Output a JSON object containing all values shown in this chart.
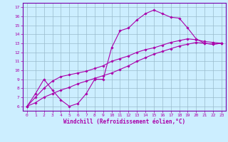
{
  "xlabel": "Windchill (Refroidissement éolien,°C)",
  "bg_color": "#cceeff",
  "line_color": "#aa00aa",
  "grid_color": "#99bbcc",
  "spine_color": "#7700aa",
  "xlim": [
    -0.5,
    23.5
  ],
  "ylim": [
    5.5,
    17.5
  ],
  "xticks": [
    0,
    1,
    2,
    3,
    4,
    5,
    6,
    7,
    8,
    9,
    10,
    11,
    12,
    13,
    14,
    15,
    16,
    17,
    18,
    19,
    20,
    21,
    22,
    23
  ],
  "yticks": [
    6,
    7,
    8,
    9,
    10,
    11,
    12,
    13,
    14,
    15,
    16,
    17
  ],
  "series": [
    {
      "x": [
        0,
        1,
        2,
        3,
        4,
        5,
        6,
        7,
        8,
        9,
        10,
        11,
        12,
        13,
        14,
        15,
        16,
        17,
        18,
        19,
        20,
        21,
        22,
        23
      ],
      "y": [
        6,
        7.4,
        9,
        7.8,
        6.7,
        6.0,
        6.3,
        7.4,
        9.0,
        9.0,
        12.5,
        14.4,
        14.7,
        15.6,
        16.3,
        16.7,
        16.3,
        15.9,
        15.8,
        14.7,
        13.5,
        13.0,
        12.9,
        13.0
      ]
    },
    {
      "x": [
        0,
        1,
        2,
        3,
        4,
        5,
        6,
        7,
        8,
        9,
        10,
        11,
        12,
        13,
        14,
        15,
        16,
        17,
        18,
        19,
        20,
        21,
        22,
        23
      ],
      "y": [
        6.0,
        7.0,
        8.0,
        8.8,
        9.3,
        9.5,
        9.7,
        9.9,
        10.2,
        10.5,
        11.0,
        11.3,
        11.6,
        12.0,
        12.3,
        12.5,
        12.8,
        13.1,
        13.3,
        13.5,
        13.4,
        13.2,
        13.1,
        13.0
      ]
    },
    {
      "x": [
        0,
        1,
        2,
        3,
        4,
        5,
        6,
        7,
        8,
        9,
        10,
        11,
        12,
        13,
        14,
        15,
        16,
        17,
        18,
        19,
        20,
        21,
        22,
        23
      ],
      "y": [
        6.0,
        6.4,
        7.0,
        7.4,
        7.8,
        8.1,
        8.5,
        8.8,
        9.1,
        9.4,
        9.7,
        10.1,
        10.5,
        11.0,
        11.4,
        11.8,
        12.1,
        12.4,
        12.7,
        12.9,
        13.1,
        13.0,
        12.9,
        13.0
      ]
    }
  ]
}
